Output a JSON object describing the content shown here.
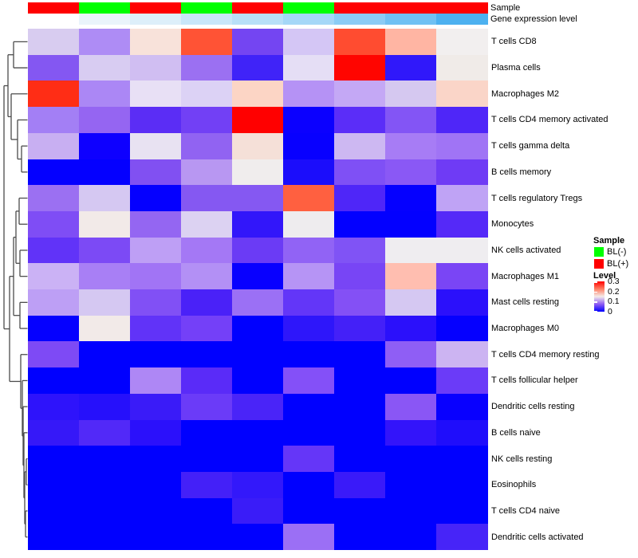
{
  "annotations": {
    "sample_label": "Sample",
    "gene_label": "Gene expression level",
    "sample_colors": [
      "#FF0000",
      "#00FF00",
      "#FF0000",
      "#00FF00",
      "#FF0000",
      "#00FF00",
      "#FF0000",
      "#FF0000",
      "#FF0000"
    ],
    "gene_gradient_colors": [
      "#FFFFFF",
      "#EAF4FB",
      "#DDEFFA",
      "#C9E6F9",
      "#B8DFF8",
      "#A5D7F7",
      "#8BCCF5",
      "#70C1F3",
      "#4DB1F0"
    ]
  },
  "chart_data": {
    "type": "heatmap",
    "title": "",
    "n_cols": 9,
    "column_sample_group": [
      "BL(+)",
      "BL(-)",
      "BL(+)",
      "BL(-)",
      "BL(+)",
      "BL(-)",
      "BL(+)",
      "BL(+)",
      "BL(+)"
    ],
    "rows": [
      "T cells CD8",
      "Plasma cells",
      "Macrophages M2",
      "T cells CD4 memory activated",
      "T cells gamma delta",
      "B cells memory",
      "T cells regulatory  Tregs",
      "Monocytes",
      "NK cells activated",
      "Macrophages M1",
      "Mast cells resting",
      "Macrophages M0",
      "T cells CD4 memory resting",
      "T cells follicular helper",
      "Dendritic cells resting",
      "B cells naive",
      "NK cells resting",
      "Eosinophils",
      "T cells CD4 naive",
      "Dendritic cells activated"
    ],
    "values": [
      [
        0.13,
        0.1,
        0.17,
        0.25,
        0.07,
        0.12,
        0.26,
        0.19,
        0.14
      ],
      [
        0.08,
        0.13,
        0.12,
        0.09,
        0.04,
        0.14,
        0.3,
        0.03,
        0.14
      ],
      [
        0.28,
        0.1,
        0.14,
        0.13,
        0.18,
        0.11,
        0.12,
        0.13,
        0.18
      ],
      [
        0.1,
        0.09,
        0.05,
        0.07,
        0.3,
        0.0,
        0.05,
        0.08,
        0.05
      ],
      [
        0.12,
        0.0,
        0.14,
        0.09,
        0.17,
        0.0,
        0.12,
        0.1,
        0.09
      ],
      [
        0.0,
        0.0,
        0.08,
        0.11,
        0.14,
        0.02,
        0.08,
        0.08,
        0.07
      ],
      [
        0.09,
        0.13,
        0.0,
        0.08,
        0.08,
        0.24,
        0.05,
        0.0,
        0.11
      ],
      [
        0.08,
        0.14,
        0.09,
        0.13,
        0.03,
        0.14,
        0.0,
        0.0,
        0.05
      ],
      [
        0.06,
        0.07,
        0.11,
        0.1,
        0.06,
        0.09,
        0.08,
        0.14,
        0.14
      ],
      [
        0.12,
        0.1,
        0.1,
        0.11,
        0.0,
        0.11,
        0.07,
        0.19,
        0.07
      ],
      [
        0.11,
        0.13,
        0.08,
        0.04,
        0.09,
        0.06,
        0.08,
        0.13,
        0.03
      ],
      [
        0.0,
        0.14,
        0.06,
        0.07,
        0.0,
        0.03,
        0.04,
        0.03,
        0.0
      ],
      [
        0.07,
        0.0,
        0.0,
        0.0,
        0.0,
        0.0,
        0.0,
        0.08,
        0.12
      ],
      [
        0.0,
        0.0,
        0.1,
        0.05,
        0.0,
        0.08,
        0.0,
        0.0,
        0.06
      ],
      [
        0.03,
        0.02,
        0.03,
        0.06,
        0.04,
        0.0,
        0.0,
        0.08,
        0.0
      ],
      [
        0.03,
        0.05,
        0.03,
        0.0,
        0.0,
        0.0,
        0.0,
        0.03,
        0.02
      ],
      [
        0.0,
        0.0,
        0.0,
        0.0,
        0.0,
        0.06,
        0.0,
        0.0,
        0.0
      ],
      [
        0.0,
        0.0,
        0.0,
        0.04,
        0.03,
        0.0,
        0.03,
        0.0,
        0.0
      ],
      [
        0.0,
        0.0,
        0.0,
        0.0,
        0.03,
        0.0,
        0.0,
        0.0,
        0.0
      ],
      [
        0.0,
        0.0,
        0.0,
        0.0,
        0.0,
        0.09,
        0.0,
        0.0,
        0.04
      ]
    ],
    "cell_colors": [
      [
        "#D8CCF0",
        "#AE8CF5",
        "#F8E2DA",
        "#FF5335",
        "#7445F2",
        "#D4C6F5",
        "#FF4C30",
        "#FFB5A3",
        "#F2EFEF"
      ],
      [
        "#8457F2",
        "#D8CCF2",
        "#D0BEF2",
        "#9B70F2",
        "#4023F8",
        "#E5DEF5",
        "#FF0500",
        "#3018FA",
        "#F0EBE8"
      ],
      [
        "#FF2D15",
        "#AB87F5",
        "#E8E0F5",
        "#DCD2F5",
        "#FCD5C5",
        "#B592F5",
        "#C4A8F5",
        "#D5C8F0",
        "#FAD5C8"
      ],
      [
        "#A37FF5",
        "#9565F2",
        "#5B2DF5",
        "#7240F5",
        "#FF0000",
        "#0B00FF",
        "#5B2DF8",
        "#8355F5",
        "#4F26F8"
      ],
      [
        "#C8AFF2",
        "#0E00FF",
        "#E8E2F2",
        "#9163F2",
        "#F5E0D8",
        "#0800FF",
        "#CDB8F2",
        "#A77CF5",
        "#A074F5"
      ],
      [
        "#0400FF",
        "#0400FF",
        "#8150F2",
        "#B897F2",
        "#F0EDED",
        "#1B0DFB",
        "#7F50F5",
        "#8A58F5",
        "#6F3BF5"
      ],
      [
        "#9B70F2",
        "#D5C8F2",
        "#0500FF",
        "#8558F2",
        "#8558F2",
        "#FF6040",
        "#4F26F8",
        "#0500FF",
        "#BFA3F5"
      ],
      [
        "#7F4DF5",
        "#F2EAE8",
        "#9466F2",
        "#DCD2F2",
        "#3216FA",
        "#EEECEE",
        "#0300FF",
        "#0300FF",
        "#5529F8"
      ],
      [
        "#6133F8",
        "#7C4AF5",
        "#BE9FF5",
        "#A478F5",
        "#6B3BF5",
        "#9163F5",
        "#8053F5",
        "#EFEDF0",
        "#EFEDF0"
      ],
      [
        "#CBB2F5",
        "#A87FF5",
        "#A174F5",
        "#B390F5",
        "#0800FF",
        "#B694F5",
        "#7845F5",
        "#FFBEB0",
        "#7A45F5"
      ],
      [
        "#BD9FF5",
        "#D5C8F2",
        "#8150F5",
        "#4A21F8",
        "#9B70F5",
        "#6336F8",
        "#8450F5",
        "#D5C8F2",
        "#2B10FB"
      ],
      [
        "#0500FF",
        "#F2EAE8",
        "#6133F8",
        "#7440F8",
        "#0000FF",
        "#2E16FA",
        "#4420F8",
        "#2B10FB",
        "#0500FF"
      ],
      [
        "#7E4AF5",
        "#0000FF",
        "#0000FF",
        "#0000FF",
        "#0000FF",
        "#0000FF",
        "#0000FF",
        "#8F5EF5",
        "#CCB4F2"
      ],
      [
        "#0000FF",
        "#0000FF",
        "#AE87F5",
        "#5A2BF8",
        "#0000FF",
        "#8450F8",
        "#0000FF",
        "#0000FF",
        "#6B3BF8"
      ],
      [
        "#2E13FB",
        "#2610FB",
        "#3A1BF8",
        "#6B3BF8",
        "#4A24F8",
        "#0000FF",
        "#0000FF",
        "#8A56F5",
        "#0800FF"
      ],
      [
        "#3618F8",
        "#5229F8",
        "#2B10FB",
        "#0000FF",
        "#0000FF",
        "#0000FF",
        "#0000FF",
        "#3314FA",
        "#1F0DFB"
      ],
      [
        "#0000FF",
        "#0000FF",
        "#0000FF",
        "#0000FF",
        "#0000FF",
        "#6536F8",
        "#0000FF",
        "#0000FF",
        "#0000FF"
      ],
      [
        "#0000FF",
        "#0000FF",
        "#0000FF",
        "#4420F8",
        "#3318FA",
        "#0000FF",
        "#3A1AF9",
        "#0000FF",
        "#0000FF"
      ],
      [
        "#0000FF",
        "#0000FF",
        "#0000FF",
        "#0000FF",
        "#3A1CF8",
        "#0000FF",
        "#0000FF",
        "#0000FF",
        "#0000FF"
      ],
      [
        "#0000FF",
        "#0000FF",
        "#0000FF",
        "#0000FF",
        "#0000FF",
        "#9B6FF5",
        "#0000FF",
        "#0000FF",
        "#4724F8"
      ]
    ],
    "scale": {
      "min": 0,
      "max": 0.3,
      "low_color": "#0000FF",
      "mid_color": "#FFFFFF",
      "high_color": "#FF0000"
    },
    "legend_position": "right",
    "dendrogram": [
      5,
      [
        10,
        [
          17,
          0,
          1
        ],
        [
          14,
          2,
          [
            22,
            3,
            [
              27,
              4,
              5
            ]
          ]
        ]
      ],
      [
        12,
        [
          17,
          [
            20,
            [
              24,
              6,
              7
            ],
            [
              25,
              8,
              9
            ]
          ],
          [
            25,
            10,
            11
          ]
        ],
        [
          26,
          12,
          [
            28,
            13,
            [
              29,
              14,
              [
                30,
                15,
                [
                  31,
                  [
                    33,
                    16,
                    17
                  ],
                  [
                    32,
                    18,
                    19
                  ]
                ]
              ]
            ]
          ]
        ]
      ]
    ]
  },
  "legend": {
    "sample_title": "Sample",
    "items": [
      {
        "label": "BL(-)",
        "color": "#00FF00"
      },
      {
        "label": "BL(+)",
        "color": "#FF0000"
      }
    ],
    "level_title": "Level",
    "level_ticks": [
      "0.3",
      "0.2",
      "0.1",
      "0"
    ],
    "gradient_stops": [
      "#FF0000",
      "#FF7E62",
      "#F4ECEA",
      "#8F5CF2",
      "#0000FF"
    ]
  }
}
